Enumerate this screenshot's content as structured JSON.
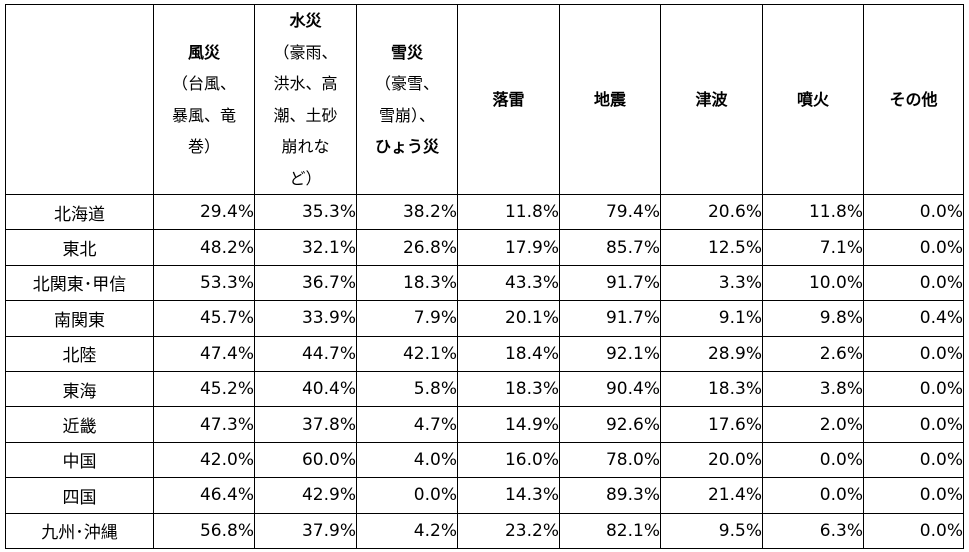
{
  "table": {
    "headers": [
      {
        "bold": "",
        "rest": []
      },
      {
        "bold": "風災",
        "rest": [
          "（台風、",
          "暴風、竜",
          "巻）"
        ]
      },
      {
        "bold": "水災",
        "rest": [
          "（豪雨、",
          "洪水、高",
          "潮、土砂",
          "崩れな",
          "ど）"
        ]
      },
      {
        "bold": "雪災",
        "rest": [
          "（豪雪、",
          "雪崩）、"
        ],
        "tail_bold": "ひょう災"
      },
      {
        "bold": "落雷",
        "rest": []
      },
      {
        "bold": "地震",
        "rest": []
      },
      {
        "bold": "津波",
        "rest": []
      },
      {
        "bold": "噴火",
        "rest": []
      },
      {
        "bold": "その他",
        "rest": []
      }
    ],
    "rows": [
      {
        "region": "北海道",
        "values": [
          "29.4%",
          "35.3%",
          "38.2%",
          "11.8%",
          "79.4%",
          "20.6%",
          "11.8%",
          "0.0%"
        ]
      },
      {
        "region": "東北",
        "values": [
          "48.2%",
          "32.1%",
          "26.8%",
          "17.9%",
          "85.7%",
          "12.5%",
          "7.1%",
          "0.0%"
        ]
      },
      {
        "region": "北関東･甲信",
        "values": [
          "53.3%",
          "36.7%",
          "18.3%",
          "43.3%",
          "91.7%",
          "3.3%",
          "10.0%",
          "0.0%"
        ]
      },
      {
        "region": "南関東",
        "values": [
          "45.7%",
          "33.9%",
          "7.9%",
          "20.1%",
          "91.7%",
          "9.1%",
          "9.8%",
          "0.4%"
        ]
      },
      {
        "region": "北陸",
        "values": [
          "47.4%",
          "44.7%",
          "42.1%",
          "18.4%",
          "92.1%",
          "28.9%",
          "2.6%",
          "0.0%"
        ]
      },
      {
        "region": "東海",
        "values": [
          "45.2%",
          "40.4%",
          "5.8%",
          "18.3%",
          "90.4%",
          "18.3%",
          "3.8%",
          "0.0%"
        ]
      },
      {
        "region": "近畿",
        "values": [
          "47.3%",
          "37.8%",
          "4.7%",
          "14.9%",
          "92.6%",
          "17.6%",
          "2.0%",
          "0.0%"
        ]
      },
      {
        "region": "中国",
        "values": [
          "42.0%",
          "60.0%",
          "4.0%",
          "16.0%",
          "78.0%",
          "20.0%",
          "0.0%",
          "0.0%"
        ]
      },
      {
        "region": "四国",
        "values": [
          "46.4%",
          "42.9%",
          "0.0%",
          "14.3%",
          "89.3%",
          "21.4%",
          "0.0%",
          "0.0%"
        ]
      },
      {
        "region": "九州･沖縄",
        "values": [
          "56.8%",
          "37.9%",
          "4.2%",
          "23.2%",
          "82.1%",
          "9.5%",
          "6.3%",
          "0.0%"
        ]
      }
    ]
  }
}
